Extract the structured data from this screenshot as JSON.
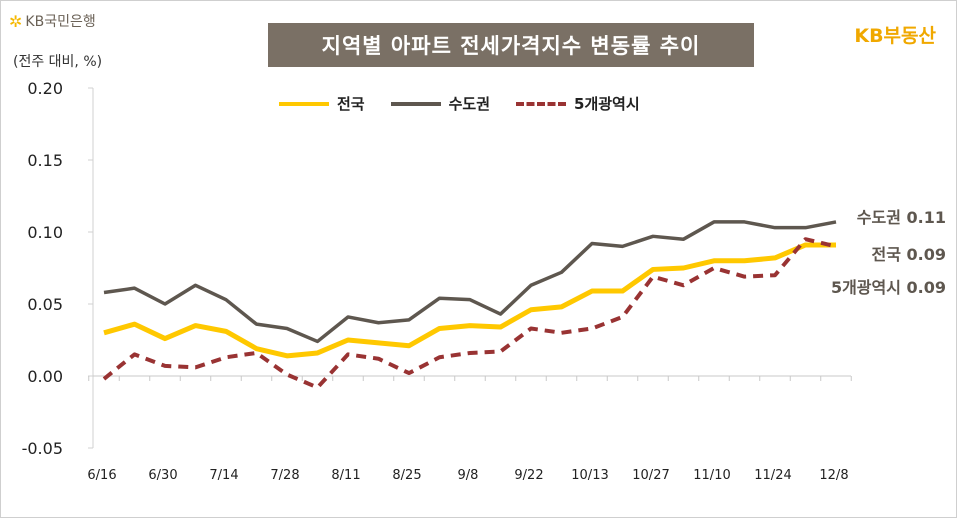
{
  "header": {
    "logo": "KB국민은행",
    "unit": "(전주 대비, %)",
    "title": "지역별 아파트 전세가격지수 변동률 추이",
    "brand": "KB부동산"
  },
  "chart_data": {
    "type": "line",
    "title": "지역별 아파트 전세가격지수 변동률 추이",
    "ylabel": "(전주 대비, %)",
    "ylim": [
      -0.05,
      0.2
    ],
    "yticks": [
      "0.20",
      "0.15",
      "0.10",
      "0.05",
      "0.00",
      "-0.05"
    ],
    "ytick_values": [
      0.2,
      0.15,
      0.1,
      0.05,
      0.0,
      -0.05
    ],
    "x": [
      "6/16",
      "6/23",
      "6/30",
      "7/7",
      "7/14",
      "7/21",
      "7/28",
      "8/4",
      "8/11",
      "8/18",
      "8/25",
      "9/1",
      "9/8",
      "9/15",
      "9/22",
      "9/29",
      "10/13",
      "10/20",
      "10/27",
      "11/3",
      "11/10",
      "11/17",
      "11/24",
      "12/1",
      "12/8"
    ],
    "xticks": [
      "6/16",
      "6/30",
      "7/14",
      "7/28",
      "8/11",
      "8/25",
      "9/8",
      "9/22",
      "10/13",
      "10/27",
      "11/10",
      "11/24",
      "12/8"
    ],
    "legend": "top",
    "grid": false,
    "series": [
      {
        "name": "전국",
        "color": "#ffc800",
        "style": "solid",
        "end_label": "전국 0.09",
        "values": [
          0.03,
          0.036,
          0.026,
          0.035,
          0.031,
          0.019,
          0.014,
          0.016,
          0.025,
          0.023,
          0.021,
          0.033,
          0.035,
          0.034,
          0.046,
          0.048,
          0.059,
          0.059,
          0.074,
          0.075,
          0.08,
          0.08,
          0.082,
          0.091,
          0.091
        ]
      },
      {
        "name": "수도권",
        "color": "#5e574f",
        "style": "solid",
        "end_label": "수도권 0.11",
        "values": [
          0.058,
          0.061,
          0.05,
          0.063,
          0.053,
          0.036,
          0.033,
          0.024,
          0.041,
          0.037,
          0.039,
          0.054,
          0.053,
          0.043,
          0.063,
          0.072,
          0.092,
          0.09,
          0.097,
          0.095,
          0.107,
          0.107,
          0.103,
          0.103,
          0.107
        ]
      },
      {
        "name": "5개광역시",
        "color": "#993333",
        "style": "dashed",
        "end_label": "5개광역시 0.09",
        "values": [
          -0.002,
          0.015,
          0.007,
          0.006,
          0.013,
          0.016,
          0.001,
          -0.008,
          0.015,
          0.012,
          0.002,
          0.013,
          0.016,
          0.017,
          0.033,
          0.03,
          0.033,
          0.041,
          0.069,
          0.063,
          0.075,
          0.069,
          0.07,
          0.095,
          0.09
        ]
      }
    ]
  }
}
